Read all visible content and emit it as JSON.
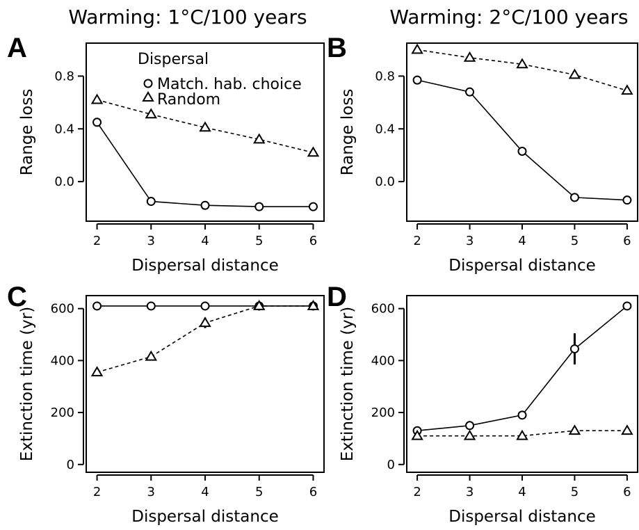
{
  "column_titles": [
    "Warming: 1°C/100 years",
    "Warming: 2°C/100 years"
  ],
  "legend": {
    "title": "Dispersal",
    "entries": [
      {
        "label": "Match. hab. choice",
        "marker": "circle",
        "line": "solid"
      },
      {
        "label": "Random",
        "marker": "triangle",
        "line": "dashed"
      }
    ]
  },
  "chart_data": [
    {
      "panel": "A",
      "type": "line",
      "xlabel": "Dispersal distance",
      "ylabel": "Range loss",
      "x": [
        2,
        3,
        4,
        5,
        6
      ],
      "xticks": [
        "2",
        "3",
        "4",
        "5",
        "6"
      ],
      "yticks": [
        "0.0",
        "0.4",
        "0.8"
      ],
      "ytick_values": [
        0.0,
        0.4,
        0.8
      ],
      "xlim": [
        1.8,
        6.2
      ],
      "ylim": [
        -0.3,
        1.05
      ],
      "series": [
        {
          "name": "Match. hab. choice",
          "marker": "circle",
          "line": "solid",
          "values": [
            0.45,
            -0.15,
            -0.18,
            -0.19,
            -0.19
          ]
        },
        {
          "name": "Random",
          "marker": "triangle",
          "line": "dashed",
          "values": [
            0.62,
            0.51,
            0.41,
            0.32,
            0.22
          ]
        }
      ]
    },
    {
      "panel": "B",
      "type": "line",
      "xlabel": "Dispersal distance",
      "ylabel": "Range loss",
      "x": [
        2,
        3,
        4,
        5,
        6
      ],
      "xticks": [
        "2",
        "3",
        "4",
        "5",
        "6"
      ],
      "yticks": [
        "0.0",
        "0.4",
        "0.8"
      ],
      "ytick_values": [
        0.0,
        0.4,
        0.8
      ],
      "xlim": [
        1.8,
        6.2
      ],
      "ylim": [
        -0.3,
        1.05
      ],
      "series": [
        {
          "name": "Match. hab. choice",
          "marker": "circle",
          "line": "solid",
          "values": [
            0.77,
            0.68,
            0.23,
            -0.12,
            -0.14
          ]
        },
        {
          "name": "Random",
          "marker": "triangle",
          "line": "dashed",
          "values": [
            1.0,
            0.94,
            0.89,
            0.81,
            0.69
          ]
        }
      ]
    },
    {
      "panel": "C",
      "type": "line",
      "xlabel": "Dispersal distance",
      "ylabel": "Extinction time (yr)",
      "x": [
        2,
        3,
        4,
        5,
        6
      ],
      "xticks": [
        "2",
        "3",
        "4",
        "5",
        "6"
      ],
      "yticks": [
        "0",
        "200",
        "400",
        "600"
      ],
      "ytick_values": [
        0,
        200,
        400,
        600
      ],
      "xlim": [
        1.8,
        6.2
      ],
      "ylim": [
        -30,
        650
      ],
      "series": [
        {
          "name": "Match. hab. choice",
          "marker": "circle",
          "line": "solid",
          "values": [
            610,
            610,
            610,
            610,
            610
          ]
        },
        {
          "name": "Random",
          "marker": "triangle",
          "line": "dashed",
          "values": [
            355,
            415,
            545,
            610,
            610
          ],
          "errors": [
            5,
            10,
            20,
            10,
            5
          ]
        }
      ]
    },
    {
      "panel": "D",
      "type": "line",
      "xlabel": "Dispersal distance",
      "ylabel": "Extinction time (yr)",
      "x": [
        2,
        3,
        4,
        5,
        6
      ],
      "xticks": [
        "2",
        "3",
        "4",
        "5",
        "6"
      ],
      "yticks": [
        "0",
        "200",
        "400",
        "600"
      ],
      "ytick_values": [
        0,
        200,
        400,
        600
      ],
      "xlim": [
        1.8,
        6.2
      ],
      "ylim": [
        -30,
        650
      ],
      "series": [
        {
          "name": "Match. hab. choice",
          "marker": "circle",
          "line": "solid",
          "values": [
            130,
            150,
            190,
            445,
            610
          ],
          "errors": [
            0,
            0,
            0,
            60,
            0
          ]
        },
        {
          "name": "Random",
          "marker": "triangle",
          "line": "dashed",
          "values": [
            110,
            110,
            110,
            130,
            130
          ]
        }
      ]
    }
  ]
}
